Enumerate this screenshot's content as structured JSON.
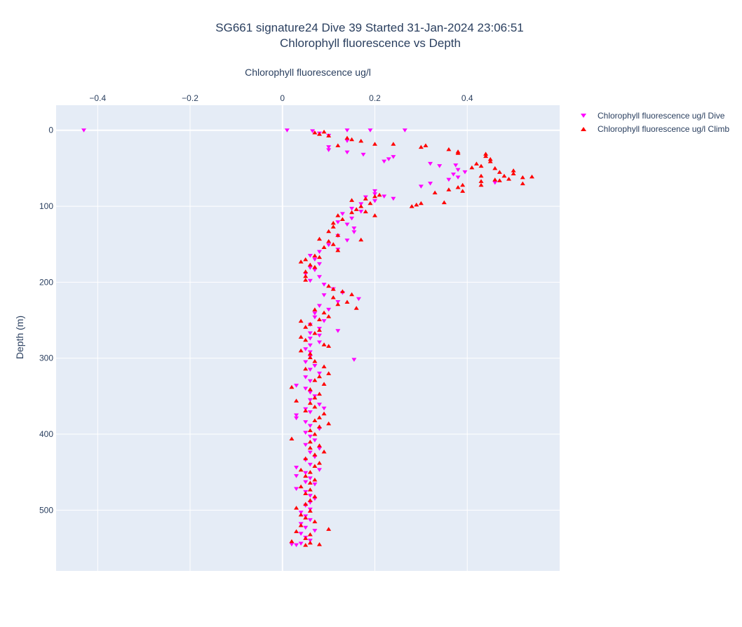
{
  "chart_data": {
    "type": "scatter",
    "title": "SG661 signature24 Dive 39 Started 31-Jan-2024 23:06:51",
    "subtitle": "Chlorophyll fluorescence vs Depth",
    "xlabel": "Chlorophyll fluorescence ug/l",
    "ylabel": "Depth (m)",
    "x_axis_position": "top",
    "y_axis_reversed": true,
    "xlim": [
      -0.49,
      0.6
    ],
    "ylim": [
      580,
      -33
    ],
    "x_ticks": [
      -0.4,
      -0.2,
      0,
      0.2,
      0.4
    ],
    "x_tick_labels": [
      "−0.4",
      "−0.2",
      "0",
      "0.2",
      "0.4"
    ],
    "y_ticks": [
      0,
      100,
      200,
      300,
      400,
      500
    ],
    "y_tick_labels": [
      "0",
      "100",
      "200",
      "300",
      "400",
      "500"
    ],
    "grid": true,
    "legend_position": "top-right",
    "background_color": "#e5ecf6",
    "series": [
      {
        "name": "Chlorophyll fluorescence ug/l Dive",
        "marker": "triangle-down",
        "color": "#ff00ff",
        "points": [
          [
            -0.43,
            0
          ],
          [
            0.01,
            0
          ],
          [
            0.065,
            1
          ],
          [
            0.14,
            0
          ],
          [
            0.19,
            0
          ],
          [
            0.265,
            0
          ],
          [
            0.08,
            4
          ],
          [
            0.1,
            7
          ],
          [
            0.14,
            14
          ],
          [
            0.1,
            22
          ],
          [
            0.1,
            26
          ],
          [
            0.14,
            29
          ],
          [
            0.175,
            32
          ],
          [
            0.22,
            41
          ],
          [
            0.23,
            38
          ],
          [
            0.24,
            35
          ],
          [
            0.32,
            44
          ],
          [
            0.34,
            47
          ],
          [
            0.375,
            46
          ],
          [
            0.38,
            52
          ],
          [
            0.395,
            55
          ],
          [
            0.37,
            58
          ],
          [
            0.36,
            65
          ],
          [
            0.38,
            62
          ],
          [
            0.3,
            74
          ],
          [
            0.32,
            70
          ],
          [
            0.46,
            69
          ],
          [
            0.2,
            80
          ],
          [
            0.2,
            84
          ],
          [
            0.18,
            88
          ],
          [
            0.22,
            87
          ],
          [
            0.24,
            90
          ],
          [
            0.2,
            93
          ],
          [
            0.17,
            97
          ],
          [
            0.15,
            103
          ],
          [
            0.17,
            107
          ],
          [
            0.13,
            110
          ],
          [
            0.15,
            116
          ],
          [
            0.12,
            121
          ],
          [
            0.14,
            124
          ],
          [
            0.155,
            129
          ],
          [
            0.155,
            134
          ],
          [
            0.12,
            139
          ],
          [
            0.14,
            145
          ],
          [
            0.1,
            151
          ],
          [
            0.12,
            157
          ],
          [
            0.08,
            160
          ],
          [
            0.06,
            165
          ],
          [
            0.07,
            170
          ],
          [
            0.08,
            176
          ],
          [
            0.06,
            181
          ],
          [
            0.07,
            184
          ],
          [
            0.05,
            189
          ],
          [
            0.08,
            193
          ],
          [
            0.06,
            198
          ],
          [
            0.09,
            203
          ],
          [
            0.11,
            209
          ],
          [
            0.13,
            214
          ],
          [
            0.09,
            217
          ],
          [
            0.165,
            222
          ],
          [
            0.12,
            226
          ],
          [
            0.08,
            231
          ],
          [
            0.1,
            236
          ],
          [
            0.07,
            241
          ],
          [
            0.07,
            246
          ],
          [
            0.09,
            251
          ],
          [
            0.06,
            256
          ],
          [
            0.08,
            261
          ],
          [
            0.12,
            264
          ],
          [
            0.06,
            267
          ],
          [
            0.08,
            270
          ],
          [
            0.06,
            274
          ],
          [
            0.08,
            279
          ],
          [
            0.06,
            283
          ],
          [
            0.05,
            288
          ],
          [
            0.06,
            292
          ],
          [
            0.155,
            302
          ],
          [
            0.06,
            298
          ],
          [
            0.05,
            305
          ],
          [
            0.07,
            310
          ],
          [
            0.06,
            315
          ],
          [
            0.08,
            320
          ],
          [
            0.05,
            325
          ],
          [
            0.06,
            330
          ],
          [
            0.03,
            336
          ],
          [
            0.05,
            340
          ],
          [
            0.06,
            345
          ],
          [
            0.07,
            350
          ],
          [
            0.06,
            355
          ],
          [
            0.08,
            361
          ],
          [
            0.05,
            367
          ],
          [
            0.09,
            366
          ],
          [
            0.06,
            371
          ],
          [
            0.03,
            375
          ],
          [
            0.03,
            379
          ],
          [
            0.05,
            384
          ],
          [
            0.06,
            389
          ],
          [
            0.08,
            393
          ],
          [
            0.05,
            398
          ],
          [
            0.06,
            403
          ],
          [
            0.07,
            408
          ],
          [
            0.05,
            414
          ],
          [
            0.08,
            419
          ],
          [
            0.06,
            424
          ],
          [
            0.07,
            430
          ],
          [
            0.05,
            434
          ],
          [
            0.06,
            440
          ],
          [
            0.03,
            444
          ],
          [
            0.08,
            447
          ],
          [
            0.05,
            451
          ],
          [
            0.03,
            455
          ],
          [
            0.06,
            458
          ],
          [
            0.05,
            463
          ],
          [
            0.07,
            466
          ],
          [
            0.03,
            472
          ],
          [
            0.05,
            476
          ],
          [
            0.06,
            481
          ],
          [
            0.07,
            485
          ],
          [
            0.06,
            490
          ],
          [
            0.05,
            494
          ],
          [
            0.06,
            499
          ],
          [
            0.04,
            503
          ],
          [
            0.05,
            508
          ],
          [
            0.06,
            513
          ],
          [
            0.04,
            518
          ],
          [
            0.05,
            523
          ],
          [
            0.07,
            527
          ],
          [
            0.04,
            531
          ],
          [
            0.05,
            536
          ],
          [
            0.06,
            540
          ],
          [
            0.02,
            545
          ],
          [
            0.03,
            546
          ],
          [
            0.04,
            544
          ]
        ]
      },
      {
        "name": "Chlorophyll fluorescence ug/l Climb",
        "marker": "triangle-up",
        "color": "#ff0000",
        "points": [
          [
            0.07,
            3
          ],
          [
            0.09,
            2
          ],
          [
            0.1,
            7
          ],
          [
            0.08,
            5
          ],
          [
            0.14,
            10
          ],
          [
            0.15,
            12
          ],
          [
            0.17,
            14
          ],
          [
            0.12,
            20
          ],
          [
            0.2,
            18
          ],
          [
            0.24,
            18
          ],
          [
            0.3,
            22
          ],
          [
            0.31,
            20
          ],
          [
            0.36,
            25
          ],
          [
            0.38,
            28
          ],
          [
            0.38,
            30
          ],
          [
            0.44,
            31
          ],
          [
            0.44,
            34
          ],
          [
            0.45,
            38
          ],
          [
            0.45,
            41
          ],
          [
            0.42,
            44
          ],
          [
            0.43,
            47
          ],
          [
            0.41,
            49
          ],
          [
            0.46,
            50
          ],
          [
            0.47,
            55
          ],
          [
            0.5,
            53
          ],
          [
            0.5,
            57
          ],
          [
            0.48,
            60
          ],
          [
            0.52,
            62
          ],
          [
            0.54,
            61
          ],
          [
            0.43,
            60
          ],
          [
            0.46,
            65
          ],
          [
            0.47,
            66
          ],
          [
            0.49,
            64
          ],
          [
            0.52,
            70
          ],
          [
            0.43,
            67
          ],
          [
            0.43,
            72
          ],
          [
            0.39,
            72
          ],
          [
            0.38,
            75
          ],
          [
            0.36,
            78
          ],
          [
            0.39,
            80
          ],
          [
            0.33,
            82
          ],
          [
            0.35,
            95
          ],
          [
            0.3,
            96
          ],
          [
            0.28,
            100
          ],
          [
            0.29,
            98
          ],
          [
            0.21,
            85
          ],
          [
            0.2,
            87
          ],
          [
            0.18,
            90
          ],
          [
            0.15,
            92
          ],
          [
            0.19,
            96
          ],
          [
            0.17,
            100
          ],
          [
            0.16,
            104
          ],
          [
            0.18,
            107
          ],
          [
            0.2,
            112
          ],
          [
            0.15,
            108
          ],
          [
            0.12,
            112
          ],
          [
            0.13,
            117
          ],
          [
            0.11,
            122
          ],
          [
            0.11,
            127
          ],
          [
            0.1,
            133
          ],
          [
            0.12,
            138
          ],
          [
            0.08,
            143
          ],
          [
            0.1,
            146
          ],
          [
            0.11,
            150
          ],
          [
            0.09,
            154
          ],
          [
            0.17,
            144
          ],
          [
            0.12,
            158
          ],
          [
            0.07,
            165
          ],
          [
            0.08,
            167
          ],
          [
            0.05,
            170
          ],
          [
            0.04,
            173
          ],
          [
            0.06,
            177
          ],
          [
            0.07,
            180
          ],
          [
            0.05,
            186
          ],
          [
            0.05,
            192
          ],
          [
            0.05,
            197
          ],
          [
            0.1,
            205
          ],
          [
            0.11,
            209
          ],
          [
            0.13,
            212
          ],
          [
            0.15,
            216
          ],
          [
            0.11,
            220
          ],
          [
            0.14,
            226
          ],
          [
            0.12,
            229
          ],
          [
            0.16,
            234
          ],
          [
            0.07,
            236
          ],
          [
            0.09,
            240
          ],
          [
            0.1,
            245
          ],
          [
            0.08,
            249
          ],
          [
            0.04,
            251
          ],
          [
            0.06,
            255
          ],
          [
            0.05,
            259
          ],
          [
            0.08,
            263
          ],
          [
            0.07,
            267
          ],
          [
            0.04,
            272
          ],
          [
            0.05,
            276
          ],
          [
            0.09,
            282
          ],
          [
            0.1,
            284
          ],
          [
            0.04,
            290
          ],
          [
            0.06,
            294
          ],
          [
            0.06,
            299
          ],
          [
            0.07,
            304
          ],
          [
            0.09,
            311
          ],
          [
            0.05,
            314
          ],
          [
            0.1,
            320
          ],
          [
            0.08,
            324
          ],
          [
            0.07,
            329
          ],
          [
            0.09,
            334
          ],
          [
            0.02,
            338
          ],
          [
            0.06,
            341
          ],
          [
            0.08,
            347
          ],
          [
            0.07,
            352
          ],
          [
            0.03,
            356
          ],
          [
            0.06,
            359
          ],
          [
            0.07,
            364
          ],
          [
            0.05,
            369
          ],
          [
            0.09,
            373
          ],
          [
            0.08,
            378
          ],
          [
            0.07,
            382
          ],
          [
            0.1,
            386
          ],
          [
            0.08,
            390
          ],
          [
            0.06,
            395
          ],
          [
            0.07,
            400
          ],
          [
            0.02,
            406
          ],
          [
            0.06,
            410
          ],
          [
            0.08,
            415
          ],
          [
            0.06,
            418
          ],
          [
            0.09,
            423
          ],
          [
            0.07,
            427
          ],
          [
            0.05,
            432
          ],
          [
            0.08,
            438
          ],
          [
            0.07,
            442
          ],
          [
            0.04,
            447
          ],
          [
            0.06,
            450
          ],
          [
            0.05,
            455
          ],
          [
            0.07,
            460
          ],
          [
            0.06,
            464
          ],
          [
            0.04,
            469
          ],
          [
            0.06,
            473
          ],
          [
            0.05,
            478
          ],
          [
            0.07,
            482
          ],
          [
            0.06,
            487
          ],
          [
            0.05,
            492
          ],
          [
            0.03,
            497
          ],
          [
            0.06,
            501
          ],
          [
            0.04,
            506
          ],
          [
            0.05,
            510
          ],
          [
            0.07,
            515
          ],
          [
            0.04,
            520
          ],
          [
            0.1,
            525
          ],
          [
            0.03,
            528
          ],
          [
            0.06,
            532
          ],
          [
            0.05,
            537
          ],
          [
            0.02,
            541
          ],
          [
            0.06,
            543
          ],
          [
            0.08,
            545
          ],
          [
            0.05,
            546
          ]
        ]
      }
    ]
  }
}
